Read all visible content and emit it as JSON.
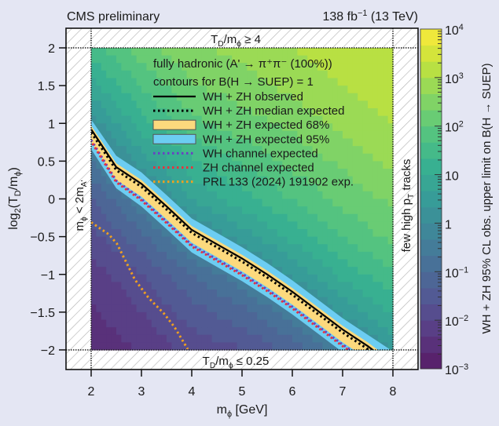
{
  "chart_data": {
    "type": "heatmap",
    "header_left": "CMS  preliminary",
    "header_right": [
      [
        "138 fb",
        ""
      ],
      [
        "−1",
        "sup"
      ],
      [
        " (13 TeV)",
        ""
      ]
    ],
    "xlabel": [
      [
        "m",
        ""
      ],
      [
        "ϕ",
        "sub"
      ],
      [
        " [GeV]",
        ""
      ]
    ],
    "ylabel": [
      [
        "log",
        ""
      ],
      [
        "2",
        "sub"
      ],
      [
        "(T",
        ""
      ],
      [
        "D",
        "sub"
      ],
      [
        "/m",
        ""
      ],
      [
        "ϕ",
        "sub"
      ],
      [
        ")",
        ""
      ]
    ],
    "zlabel": "WH + ZH 95% CL obs. upper limit on B(H → SUEP)",
    "xlim": [
      1.45,
      8.5
    ],
    "ylim": [
      -2.26,
      2.25
    ],
    "zlim": [
      0.001,
      10000
    ],
    "zscale": "log",
    "xticks": [
      "2",
      "3",
      "4",
      "5",
      "6",
      "7",
      "8"
    ],
    "yticks": [
      "−2",
      "−1.5",
      "−1",
      "−0.5",
      "0",
      "0.5",
      "1",
      "1.5",
      "2"
    ],
    "zticks": [
      [
        [
          "10",
          ""
        ],
        [
          "−3",
          "sup"
        ]
      ],
      [
        [
          "10",
          ""
        ],
        [
          "−2",
          "sup"
        ]
      ],
      [
        [
          "10",
          ""
        ],
        [
          "−1",
          "sup"
        ]
      ],
      [
        [
          "1",
          ""
        ]
      ],
      [
        [
          "10",
          ""
        ]
      ],
      [
        [
          "10",
          ""
        ],
        [
          "2",
          "sup"
        ]
      ],
      [
        [
          "10",
          ""
        ],
        [
          "3",
          "sup"
        ]
      ],
      [
        [
          "10",
          ""
        ],
        [
          "4",
          "sup"
        ]
      ]
    ],
    "colormap": "viridis",
    "grid_x": [
      2,
      3,
      4,
      5,
      6,
      7,
      8
    ],
    "grid_y": [
      2,
      1.5,
      1,
      0.5,
      0,
      -0.5,
      -1,
      -1.5,
      -2
    ],
    "z": [
      [
        32,
        160,
        400,
        630,
        1000,
        1600,
        2000
      ],
      [
        7.9,
        50,
        200,
        320,
        630,
        1000,
        1600
      ],
      [
        1.3,
        16,
        79,
        160,
        250,
        630,
        1000
      ],
      [
        0.2,
        3.2,
        20,
        50,
        130,
        250,
        630
      ],
      [
        0.04,
        0.4,
        5,
        16,
        50,
        130,
        250
      ],
      [
        0.016,
        0.079,
        0.63,
        3.2,
        13,
        50,
        130
      ],
      [
        0.0063,
        0.02,
        0.1,
        0.4,
        2.5,
        13,
        40
      ],
      [
        0.004,
        0.01,
        0.032,
        0.079,
        0.32,
        2.5,
        13
      ],
      [
        0.0025,
        0.005,
        0.013,
        0.02,
        0.063,
        0.32,
        2
      ]
    ],
    "excluded_regions": {
      "top": [
        [
          "T",
          ""
        ],
        [
          "D",
          "sub"
        ],
        [
          "/m",
          ""
        ],
        [
          "ϕ",
          "sub"
        ],
        [
          " ≥ 4",
          ""
        ]
      ],
      "bottom": [
        [
          "T",
          ""
        ],
        [
          "D",
          "sub"
        ],
        [
          "/m",
          ""
        ],
        [
          "ϕ",
          "sub"
        ],
        [
          " ≤ 0.25",
          ""
        ]
      ],
      "left": [
        [
          "m",
          ""
        ],
        [
          "ϕ",
          "sub"
        ],
        [
          " < 2m",
          ""
        ],
        [
          "A'",
          "sub"
        ]
      ],
      "right": [
        [
          "few high p",
          ""
        ],
        [
          "T",
          "sub"
        ],
        [
          " tracks",
          ""
        ]
      ]
    },
    "legend": {
      "placement": "top-center",
      "heading1": "fully hadronic (A' → π⁺π⁻ (100%))",
      "heading2": "contours for B(H → SUEP) = 1",
      "items": [
        {
          "label": "WH + ZH observed",
          "style": "solid",
          "color": "#000000"
        },
        {
          "label": "WH + ZH median expected",
          "style": "dotted",
          "color": "#000000"
        },
        {
          "label": "WH + ZH expected 68%",
          "style": "band",
          "color": "#fcd97d"
        },
        {
          "label": "WH + ZH expected 95%",
          "style": "band",
          "color": "#6ccdf2"
        },
        {
          "label": "WH channel expected",
          "style": "dotted",
          "color": "#6a3fc4"
        },
        {
          "label": "ZH channel expected",
          "style": "dotted",
          "color": "#e8323c"
        },
        {
          "label": "PRL 133 (2024) 191902 exp.",
          "style": "dotted",
          "color": "#f0a020"
        }
      ]
    },
    "contour_x": [
      2,
      2.5,
      3,
      3.5,
      4,
      4.5,
      5,
      5.5,
      6,
      6.5,
      7,
      7.5,
      8
    ],
    "contours": {
      "observed": [
        0.92,
        0.42,
        0.2,
        -0.1,
        -0.41,
        -0.6,
        -0.79,
        -1.0,
        -1.23,
        -1.48,
        -1.73,
        -1.95,
        -2.2
      ],
      "median_expected": [
        0.88,
        0.38,
        0.16,
        -0.14,
        -0.45,
        -0.64,
        -0.83,
        -1.04,
        -1.27,
        -1.52,
        -1.77,
        -1.99,
        -2.24
      ],
      "band68_upper": [
        0.97,
        0.47,
        0.25,
        -0.05,
        -0.36,
        -0.55,
        -0.74,
        -0.95,
        -1.18,
        -1.43,
        -1.68,
        -1.9,
        -2.15
      ],
      "band68_lower": [
        0.75,
        0.25,
        0.03,
        -0.27,
        -0.58,
        -0.77,
        -0.96,
        -1.17,
        -1.4,
        -1.65,
        -1.9,
        -2.12,
        -2.37
      ],
      "band95_upper": [
        1.05,
        0.57,
        0.35,
        0.05,
        -0.26,
        -0.45,
        -0.64,
        -0.85,
        -1.08,
        -1.33,
        -1.58,
        -1.8,
        -2.02
      ],
      "band95_lower": [
        0.66,
        0.14,
        -0.1,
        -0.4,
        -0.71,
        -0.9,
        -1.09,
        -1.3,
        -1.53,
        -1.78,
        -2.03,
        -2.25,
        -2.5
      ],
      "wh_expected": [
        0.78,
        0.24,
        0.0,
        -0.3,
        -0.61,
        -0.8,
        -0.99,
        -1.2,
        -1.43,
        -1.68,
        -1.93,
        -2.15,
        -2.4
      ],
      "zh_expected": [
        0.76,
        0.22,
        -0.02,
        -0.32,
        -0.63,
        -0.82,
        -1.01,
        -1.22,
        -1.45,
        -1.7,
        -1.95,
        -2.17,
        -2.42
      ]
    },
    "prl_expected": {
      "x": [
        2,
        2.35,
        2.51,
        2.69,
        2.87,
        3.14,
        3.45,
        3.66,
        3.92
      ],
      "y": [
        -0.31,
        -0.47,
        -0.59,
        -0.83,
        -1.07,
        -1.31,
        -1.52,
        -1.7,
        -1.99
      ]
    }
  }
}
